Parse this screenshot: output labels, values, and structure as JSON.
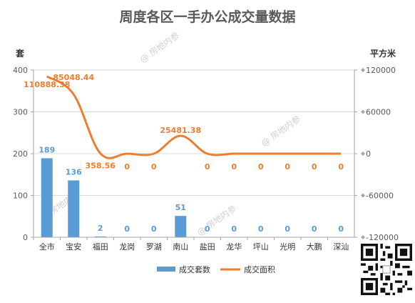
{
  "chart_data": {
    "type": "bar",
    "title": "周度各区一手办公成交量数据",
    "y_left_unit": "套",
    "y_right_unit": "平方米",
    "categories": [
      "全市",
      "宝安",
      "福田",
      "龙岗",
      "罗湖",
      "南山",
      "盐田",
      "龙华",
      "坪山",
      "光明",
      "大鹏",
      "深汕"
    ],
    "series": [
      {
        "name": "成交套数",
        "kind": "bar",
        "axis": "left",
        "color": "#5b9bd5",
        "values": [
          189,
          136,
          2,
          0,
          0,
          51,
          0,
          0,
          0,
          0,
          0,
          0
        ],
        "labels": [
          "189",
          "136",
          "2",
          "0",
          "0",
          "51",
          "0",
          "0",
          "0",
          "0",
          "0",
          "0"
        ]
      },
      {
        "name": "成交面积",
        "kind": "line",
        "axis": "right",
        "color": "#ed7d31",
        "values": [
          110888.38,
          85048.44,
          358.56,
          0,
          0,
          25481.38,
          0,
          0,
          0,
          0,
          0,
          0
        ],
        "labels": [
          "110888.38",
          "85048.44",
          "358.56",
          "0",
          "0",
          "25481.38",
          "0",
          "0",
          "0",
          "0",
          "0",
          "0"
        ]
      }
    ],
    "y_left": {
      "min": 0,
      "max": 400,
      "ticks": [
        "0",
        "100",
        "200",
        "300",
        "400"
      ]
    },
    "y_right": {
      "min": -120000,
      "max": 120000,
      "ticks": [
        "-120000",
        "-60000",
        "0",
        "60000",
        "120000"
      ]
    },
    "grid": true,
    "legend_position": "bottom",
    "watermark": "@ 房地内参",
    "qr_icon": "qr-code-icon"
  }
}
